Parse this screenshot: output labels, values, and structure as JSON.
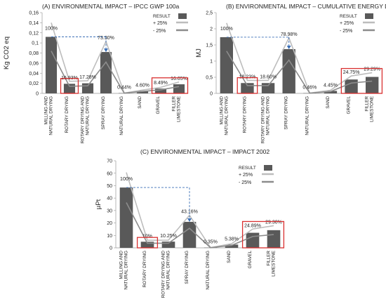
{
  "colors": {
    "bar": "#595959",
    "plus25": "#bdbdbd",
    "minus25": "#8c8c8c",
    "highlight": "#d93030",
    "arrow": "#3b6fb6",
    "grid": "#e6e6e6",
    "axis": "#999999"
  },
  "chart_data": [
    {
      "type": "bar",
      "title": "(A) ENVIRONMENTAL IMPACT – IPCC GWP 100a",
      "ylabel": "Kg CO2 eq",
      "ylim": [
        0,
        0.16
      ],
      "yticks": [
        "0",
        "0,02",
        "0,04",
        "0,06",
        "0,08",
        "0,1",
        "0,12",
        "0,14",
        "0,16"
      ],
      "categories": [
        "MILLING AND NATURAL DRYING",
        "ROTARY DRYING",
        "ROTARY DRYING AND NATURAL DRYING",
        "SPRAY DRYING",
        "NATURAL DRYING",
        "SAND",
        "GRAVEL",
        "FILLER LIMESTONE"
      ],
      "series": [
        {
          "name": "RESULT",
          "values": [
            0.112,
            0.019,
            0.02,
            0.082,
            0.0005,
            0.005,
            0.0095,
            0.018
          ]
        },
        {
          "name": "+ 25%",
          "values": [
            0.14,
            0.024,
            0.025,
            0.103,
            0.0006,
            0.0065,
            0.012,
            0.0225
          ]
        },
        {
          "name": "- 25%",
          "values": [
            0.084,
            0.014,
            0.015,
            0.062,
            0.0004,
            0.0039,
            0.0071,
            0.0135
          ]
        }
      ],
      "labels": [
        "100%",
        "16.93%",
        "17.28%",
        "73.30%",
        "0.44%",
        "4.60%",
        "8.49%",
        "16.05%"
      ],
      "legend": "top-right",
      "grid": false
    },
    {
      "type": "bar",
      "title": "(B) ENVIRONMENTAL IMPACT – CUMULATIVE ENERGY DEMAND",
      "ylabel": "MJ",
      "ylim": [
        0,
        2.5
      ],
      "yticks": [
        "0",
        "0,5",
        "1",
        "1,5",
        "2",
        "2,5"
      ],
      "categories": [
        "MILLING AND NATURAL DRYING",
        "ROTARY DRYING",
        "ROTARY DRYING AND NATURAL DRYING",
        "SPRAY DRYING",
        "NATURAL DRYING",
        "SAND",
        "GRAVEL",
        "FILLER LIMESTONE"
      ],
      "series": [
        {
          "name": "RESULT",
          "values": [
            1.74,
            0.32,
            0.32,
            1.37,
            0.008,
            0.077,
            0.43,
            0.51
          ]
        },
        {
          "name": "+ 25%",
          "values": [
            2.18,
            0.4,
            0.4,
            1.72,
            0.01,
            0.097,
            0.54,
            0.64
          ]
        },
        {
          "name": "- 25%",
          "values": [
            1.31,
            0.24,
            0.24,
            1.03,
            0.006,
            0.058,
            0.32,
            0.38
          ]
        }
      ],
      "labels": [
        "100%",
        "18.23%",
        "18.60%",
        "78.98%",
        "0.46%",
        "4.45%",
        "24.75%",
        "29.29%"
      ],
      "legend": "top-right",
      "grid": false
    },
    {
      "type": "bar",
      "title": "(C) ENVIRONMENTAL IMPACT – IMPACT 2002",
      "ylabel": "µPt",
      "ylim": [
        0,
        70
      ],
      "yticks": [
        "0",
        "10",
        "20",
        "30",
        "40",
        "50",
        "60",
        "70"
      ],
      "categories": [
        "MILLING AND NATURAL DRYING",
        "ROTARY DRYING",
        "ROTARY DRYING AND NATURAL DRYING",
        "SPRAY DRYING",
        "NATURAL DRYING",
        "SAND",
        "GRAVEL",
        "FILLER LIMESTONE"
      ],
      "series": [
        {
          "name": "RESULT",
          "values": [
            48.5,
            4.9,
            5.0,
            20.9,
            0.17,
            2.6,
            12.1,
            14.2
          ]
        },
        {
          "name": "+ 25%",
          "values": [
            60.6,
            6.1,
            6.2,
            26.2,
            0.21,
            3.3,
            15.1,
            17.8
          ]
        },
        {
          "name": "- 25%",
          "values": [
            36.4,
            3.7,
            3.7,
            15.7,
            0.13,
            2.0,
            9.1,
            10.7
          ]
        }
      ],
      "labels": [
        "100%",
        "10%",
        "10.25%",
        "43.16%",
        "0.35%",
        "5.38%",
        "24.89%",
        "29.30%"
      ],
      "legend": "top-right",
      "grid": false
    }
  ]
}
